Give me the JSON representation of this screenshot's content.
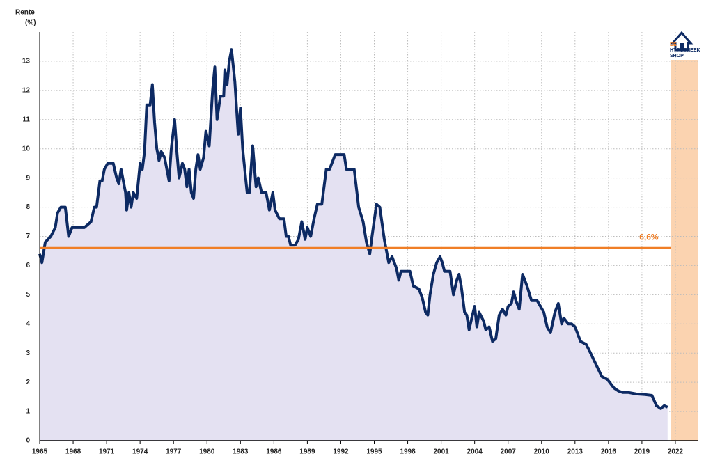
{
  "chart_data": {
    "type": "line",
    "ylabel": [
      "Rente",
      "(%)"
    ],
    "logo": [
      "DE",
      "HYPOTHEEK",
      "SHOP"
    ],
    "color": "#0d2a63",
    "fill": "#e4e1f2",
    "x": [
      1965.0,
      1965.2,
      1965.5,
      1966.0,
      1966.4,
      1966.6,
      1966.9,
      1967.3,
      1967.6,
      1967.9,
      1969.0,
      1969.6,
      1969.9,
      1970.1,
      1970.4,
      1970.6,
      1970.8,
      1971.1,
      1971.6,
      1971.9,
      1972.1,
      1972.3,
      1972.7,
      1972.8,
      1973.0,
      1973.2,
      1973.4,
      1973.7,
      1974.0,
      1974.2,
      1974.4,
      1974.6,
      1974.9,
      1975.1,
      1975.3,
      1975.5,
      1975.7,
      1975.9,
      1976.2,
      1976.6,
      1976.8,
      1977.1,
      1977.3,
      1977.5,
      1977.8,
      1978.0,
      1978.2,
      1978.4,
      1978.6,
      1978.8,
      1979.0,
      1979.2,
      1979.4,
      1979.7,
      1979.9,
      1980.2,
      1980.5,
      1980.7,
      1980.9,
      1981.2,
      1981.5,
      1981.6,
      1981.8,
      1982.0,
      1982.2,
      1982.5,
      1982.8,
      1983.0,
      1983.2,
      1983.6,
      1983.8,
      1984.1,
      1984.4,
      1984.6,
      1984.9,
      1985.3,
      1985.6,
      1985.9,
      1986.1,
      1986.5,
      1986.9,
      1987.1,
      1987.3,
      1987.5,
      1987.9,
      1988.2,
      1988.5,
      1988.8,
      1989.0,
      1989.3,
      1989.6,
      1989.9,
      1990.3,
      1990.7,
      1991.0,
      1991.5,
      1992.3,
      1992.5,
      1993.2,
      1993.6,
      1994.0,
      1994.3,
      1994.6,
      1994.8,
      1995.2,
      1995.5,
      1995.9,
      1996.3,
      1996.6,
      1997.0,
      1997.2,
      1997.4,
      1998.2,
      1998.5,
      1999.0,
      1999.3,
      1999.6,
      1999.8,
      2000.0,
      2000.3,
      2000.6,
      2000.9,
      2001.1,
      2001.3,
      2001.8,
      2002.1,
      2002.4,
      2002.6,
      2002.8,
      2003.1,
      2003.3,
      2003.5,
      2003.8,
      2004.0,
      2004.2,
      2004.4,
      2004.8,
      2005.0,
      2005.3,
      2005.6,
      2005.9,
      2006.2,
      2006.5,
      2006.8,
      2007.0,
      2007.3,
      2007.5,
      2007.7,
      2008.0,
      2008.3,
      2008.7,
      2009.1,
      2009.6,
      2009.9,
      2010.2,
      2010.5,
      2010.8,
      2011.2,
      2011.5,
      2011.8,
      2012.0,
      2012.4,
      2012.7,
      2013.0,
      2013.3,
      2013.5,
      2014.0,
      2014.4,
      2014.9,
      2015.4,
      2015.9,
      2016.5,
      2016.9,
      2017.3,
      2017.8,
      2018.5,
      2019.3,
      2019.9,
      2020.3,
      2020.7,
      2021.0,
      2021.3
    ],
    "values": [
      6.4,
      6.1,
      6.8,
      7.0,
      7.3,
      7.8,
      8.0,
      8.0,
      7.0,
      7.3,
      7.3,
      7.5,
      8.0,
      8.0,
      8.9,
      8.9,
      9.3,
      9.5,
      9.5,
      9.0,
      8.8,
      9.3,
      8.5,
      7.9,
      8.5,
      8.0,
      8.5,
      8.3,
      9.5,
      9.3,
      9.9,
      11.5,
      11.5,
      12.2,
      10.9,
      10.0,
      9.6,
      9.9,
      9.7,
      8.9,
      10.0,
      11.0,
      9.9,
      9.0,
      9.5,
      9.3,
      8.7,
      9.3,
      8.5,
      8.3,
      9.3,
      9.8,
      9.3,
      9.7,
      10.6,
      10.1,
      12.0,
      12.8,
      11.0,
      11.8,
      11.8,
      12.7,
      12.2,
      13.0,
      13.4,
      12.3,
      10.5,
      11.4,
      10.0,
      8.5,
      8.5,
      10.1,
      8.7,
      9.0,
      8.5,
      8.5,
      7.9,
      8.5,
      7.9,
      7.6,
      7.6,
      7.0,
      7.0,
      6.7,
      6.7,
      6.9,
      7.5,
      6.9,
      7.3,
      7.0,
      7.6,
      8.1,
      8.1,
      9.3,
      9.3,
      9.8,
      9.8,
      9.3,
      9.3,
      8.0,
      7.5,
      6.8,
      6.4,
      7.0,
      8.1,
      8.0,
      6.9,
      6.1,
      6.3,
      5.9,
      5.5,
      5.8,
      5.8,
      5.3,
      5.2,
      4.9,
      4.4,
      4.3,
      5.0,
      5.7,
      6.1,
      6.3,
      6.1,
      5.8,
      5.8,
      5.0,
      5.5,
      5.7,
      5.3,
      4.4,
      4.3,
      3.8,
      4.3,
      4.6,
      3.9,
      4.4,
      4.1,
      3.8,
      3.9,
      3.4,
      3.5,
      4.3,
      4.5,
      4.3,
      4.6,
      4.7,
      5.1,
      4.8,
      4.5,
      5.7,
      5.3,
      4.8,
      4.8,
      4.6,
      4.4,
      3.9,
      3.7,
      4.4,
      4.7,
      4.0,
      4.2,
      4.0,
      4.0,
      3.9,
      3.6,
      3.4,
      3.3,
      3.0,
      2.6,
      2.2,
      2.1,
      1.8,
      1.7,
      1.65,
      1.65,
      1.6,
      1.58,
      1.55,
      1.2,
      1.1,
      1.2,
      1.15
    ],
    "reference_line": {
      "value": 6.6,
      "label": "6,6%",
      "color": "#f07e26"
    },
    "shaded_xrange": [
      2021.6,
      2024
    ],
    "shade_color": "#fbd3b0",
    "xlim": [
      1965,
      2024
    ],
    "xticks": [
      1965,
      1968,
      1971,
      1974,
      1977,
      1980,
      1983,
      1986,
      1989,
      1992,
      1995,
      1998,
      2001,
      2004,
      2007,
      2010,
      2013,
      2016,
      2019,
      2022
    ],
    "ylim": [
      0,
      14
    ],
    "yticks": [
      0,
      1,
      2,
      3,
      4,
      5,
      6,
      7,
      8,
      9,
      10,
      11,
      12,
      13
    ],
    "grid": true
  }
}
